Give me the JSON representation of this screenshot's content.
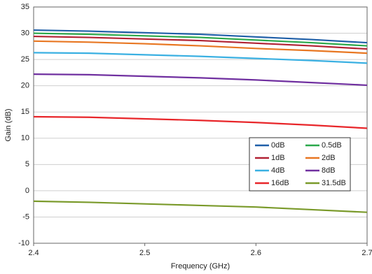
{
  "chart_data": {
    "type": "line",
    "x_label": "Frequency (GHz)",
    "y_label": "Gain (dB)",
    "x": [
      2.4,
      2.45,
      2.5,
      2.55,
      2.6,
      2.65,
      2.7
    ],
    "series": [
      {
        "name": "0dB",
        "color": "#1f5fa8",
        "values": [
          30.6,
          30.4,
          30.1,
          29.8,
          29.3,
          28.8,
          28.2
        ]
      },
      {
        "name": "0.5dB",
        "color": "#2aa84a",
        "values": [
          30.0,
          29.8,
          29.5,
          29.2,
          28.7,
          28.2,
          27.6
        ]
      },
      {
        "name": "1dB",
        "color": "#b22234",
        "values": [
          29.4,
          29.2,
          28.9,
          28.6,
          28.1,
          27.6,
          27.0
        ]
      },
      {
        "name": "2dB",
        "color": "#e87722",
        "values": [
          28.5,
          28.3,
          28.0,
          27.6,
          27.1,
          26.7,
          26.2
        ]
      },
      {
        "name": "4dB",
        "color": "#3ab0e2",
        "values": [
          26.3,
          26.2,
          25.9,
          25.6,
          25.2,
          24.8,
          24.3
        ]
      },
      {
        "name": "8dB",
        "color": "#7030a0",
        "values": [
          22.2,
          22.1,
          21.8,
          21.5,
          21.1,
          20.6,
          20.1
        ]
      },
      {
        "name": "16dB",
        "color": "#e8262a",
        "values": [
          14.1,
          14.0,
          13.7,
          13.4,
          13.0,
          12.5,
          11.9
        ]
      },
      {
        "name": "31.5dB",
        "color": "#7a9a2a",
        "values": [
          -2.0,
          -2.2,
          -2.5,
          -2.8,
          -3.1,
          -3.6,
          -4.1
        ]
      }
    ],
    "xlim": [
      2.4,
      2.7
    ],
    "xticks": [
      2.4,
      2.5,
      2.6,
      2.7
    ],
    "ylim": [
      -10,
      35
    ],
    "yticks": [
      -10,
      -5,
      0,
      5,
      10,
      15,
      20,
      25,
      30,
      35
    ],
    "grid": true
  }
}
